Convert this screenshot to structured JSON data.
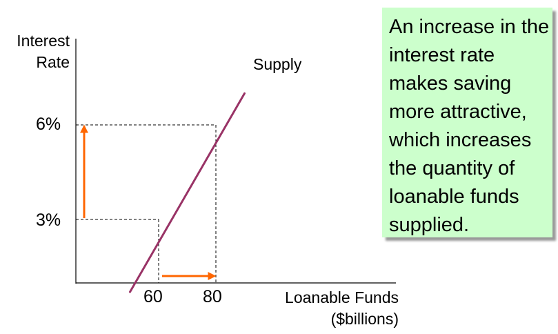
{
  "chart_data": {
    "type": "line",
    "ylabel_line1": "Interest",
    "ylabel_line2": "Rate",
    "xlabel_line1": "Loanable Funds",
    "xlabel_line2": "($billions)",
    "x_ticks": [
      {
        "value": 60,
        "label": "60"
      },
      {
        "value": 80,
        "label": "80"
      }
    ],
    "y_ticks": [
      {
        "value": 3,
        "label": "3%"
      },
      {
        "value": 6,
        "label": "6%"
      }
    ],
    "series": [
      {
        "name": "Supply",
        "x": [
          50,
          90
        ],
        "y": [
          0.7,
          7.0
        ]
      }
    ],
    "points": [
      {
        "x": 60,
        "y": 3
      },
      {
        "x": 80,
        "y": 6
      }
    ],
    "arrows": [
      {
        "axis": "y",
        "from": 3,
        "to": 6
      },
      {
        "axis": "x",
        "from": 60,
        "to": 80
      }
    ],
    "colors": {
      "supply": "#993366",
      "arrow": "#ff6600",
      "axis": "#000000",
      "guide": "#000000"
    }
  },
  "callout": {
    "text": "An increase in the interest rate makes saving more attractive, which increases the quantity of loanable funds supplied.",
    "background": "#ccffcc"
  }
}
